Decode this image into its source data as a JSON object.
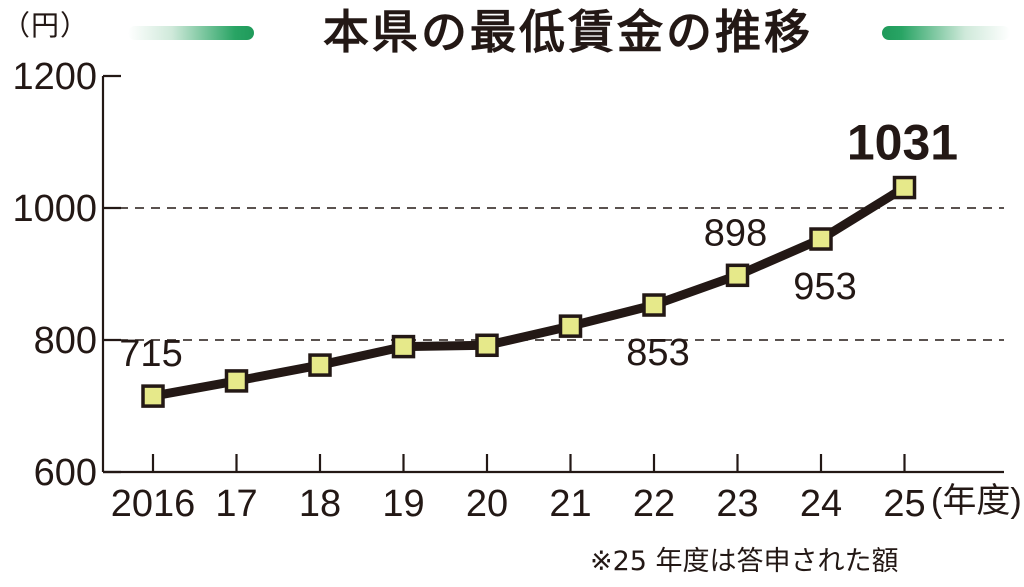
{
  "header": {
    "unit": "（円）",
    "title": "本県の最低賃金の推移"
  },
  "footnote": "※25 年度は答申された額",
  "colors": {
    "line": "#231815",
    "marker_fill": "#e6e98a",
    "accent_bar": "#28a464"
  },
  "chart_data": {
    "type": "line",
    "title": "本県の最低賃金の推移",
    "ylabel": "（円）",
    "xlabel": "(年度)",
    "categories": [
      "2016",
      "17",
      "18",
      "19",
      "20",
      "21",
      "22",
      "23",
      "24",
      "25"
    ],
    "values": [
      715,
      738,
      762,
      790,
      792,
      821,
      853,
      898,
      953,
      1031
    ],
    "ylim": [
      600,
      1200
    ],
    "yticks": [
      "600",
      "800",
      "1000",
      "1200"
    ],
    "gridlines": [
      800,
      1000
    ],
    "grid_style": "dashed",
    "labels": [
      {
        "text": "715",
        "index": 0,
        "position": "above"
      },
      {
        "text": "853",
        "index": 6,
        "position": "below"
      },
      {
        "text": "898",
        "index": 7,
        "position": "above"
      },
      {
        "text": "953",
        "index": 8,
        "position": "below"
      },
      {
        "text": "1031",
        "index": 9,
        "position": "above",
        "bold": true
      }
    ]
  }
}
